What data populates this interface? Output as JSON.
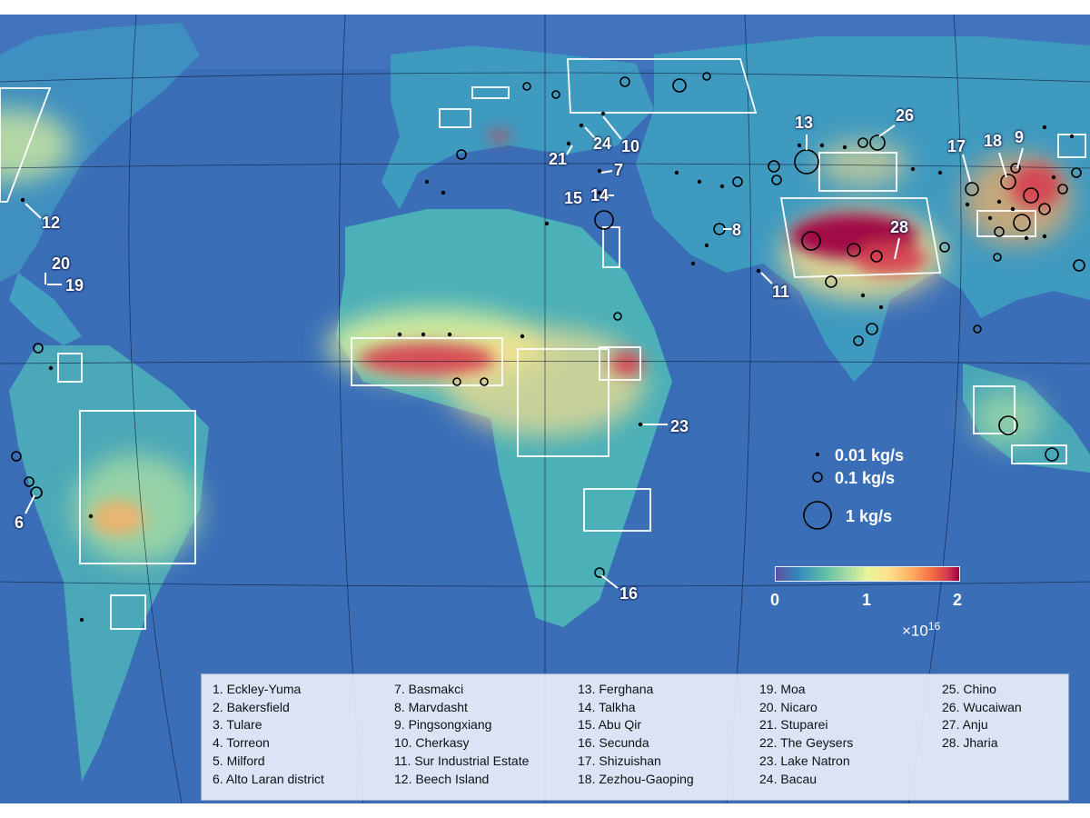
{
  "site_labels": [
    {
      "id": "12",
      "text": "12"
    },
    {
      "id": "20",
      "text": "20"
    },
    {
      "id": "19",
      "text": "19"
    },
    {
      "id": "6",
      "text": "6"
    },
    {
      "id": "21",
      "text": "21"
    },
    {
      "id": "24",
      "text": "24"
    },
    {
      "id": "10",
      "text": "10"
    },
    {
      "id": "7",
      "text": "7"
    },
    {
      "id": "15",
      "text": "15"
    },
    {
      "id": "14",
      "text": "14"
    },
    {
      "id": "8",
      "text": "8"
    },
    {
      "id": "11",
      "text": "11"
    },
    {
      "id": "13",
      "text": "13"
    },
    {
      "id": "26",
      "text": "26"
    },
    {
      "id": "17",
      "text": "17"
    },
    {
      "id": "18",
      "text": "18"
    },
    {
      "id": "9",
      "text": "9"
    },
    {
      "id": "28",
      "text": "28"
    },
    {
      "id": "23",
      "text": "23"
    },
    {
      "id": "16",
      "text": "16"
    }
  ],
  "size_legend": [
    "0.01 kg/s",
    "0.1 kg/s",
    "1 kg/s"
  ],
  "colorbar": {
    "ticks": [
      "0",
      "1",
      "2"
    ],
    "multiplier": "×10",
    "exponent": "16",
    "colors": [
      "#5e4fa2",
      "#3288bd",
      "#66c2a5",
      "#abdda4",
      "#e6f598",
      "#fee08b",
      "#fdae61",
      "#f46d43",
      "#d53e4f",
      "#9e0142"
    ]
  },
  "site_list": [
    [
      "1. Eckley-Yuma",
      "2. Bakersfield",
      "3. Tulare",
      "4. Torreon",
      "5. Milford",
      "6. Alto Laran district"
    ],
    [
      "7. Basmakci",
      "8. Marvdasht",
      "9. Pingsongxiang",
      "10. Cherkasy",
      "11. Sur Industrial Estate",
      "12. Beech Island"
    ],
    [
      "13. Ferghana",
      "14. Talkha",
      "15. Abu Qir",
      "16. Secunda",
      "17. Shizuishan",
      "18. Zezhou-Gaoping"
    ],
    [
      "19. Moa",
      "20. Nicaro",
      "21. Stuparei",
      "22. The Geysers",
      "23. Lake Natron",
      "24. Bacau"
    ],
    [
      "25. Chino",
      "26. Wucaiwan",
      "27. Anju",
      "28. Jharia"
    ]
  ]
}
